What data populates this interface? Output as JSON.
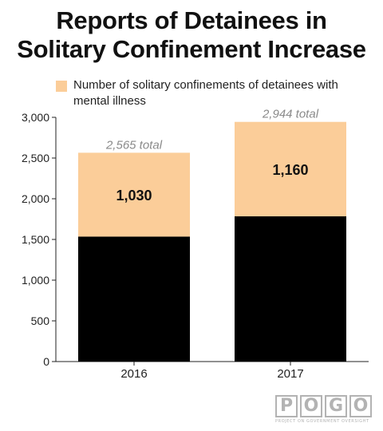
{
  "title_lines": [
    "Reports of Detainees in",
    "Solitary Confinement Increase"
  ],
  "legend": {
    "label": "Number of solitary confinements of detainees with mental illness",
    "color": "#fbcd99"
  },
  "chart_data": {
    "type": "bar",
    "stacked": true,
    "categories": [
      "2016",
      "2017"
    ],
    "series": [
      {
        "values": [
          1535,
          1784
        ],
        "color": "#000000"
      },
      {
        "name": "Number of solitary confinements of detainees with mental illness",
        "values": [
          1030,
          1160
        ],
        "color": "#fbcd99"
      }
    ],
    "segment_labels": [
      "1,030",
      "1,160"
    ],
    "totals": [
      2565,
      2944
    ],
    "total_labels": [
      "2,565 total",
      "2,944 total"
    ],
    "ylim": [
      0,
      3000
    ],
    "yticks": [
      0,
      500,
      1000,
      1500,
      2000,
      2500,
      3000
    ],
    "ytick_labels": [
      "0",
      "500",
      "1,000",
      "1,500",
      "2,000",
      "2,500",
      "3,000"
    ],
    "grid": false
  },
  "logo": {
    "letters": [
      "P",
      "O",
      "G",
      "O"
    ],
    "subtitle": "PROJECT ON GOVERNMENT OVERSIGHT"
  }
}
